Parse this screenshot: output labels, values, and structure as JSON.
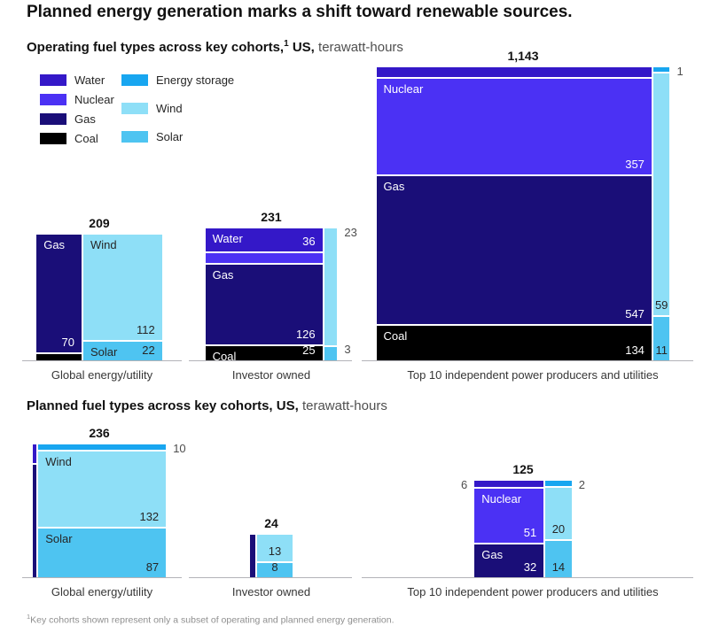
{
  "title": "Planned energy generation marks a shift toward renewable sources.",
  "headings": {
    "operating": {
      "bold": "Operating fuel types across key cohorts,",
      "sup": "1",
      "bold_cont": " US,",
      "unit": " terawatt-hours"
    },
    "planned": {
      "bold": "Planned fuel types across key cohorts, US,",
      "unit": " terawatt-hours"
    }
  },
  "legend": {
    "items": [
      {
        "label": "Water",
        "color": "#3418c8"
      },
      {
        "label": "Nuclear",
        "color": "#4b31f4"
      },
      {
        "label": "Gas",
        "color": "#1a0e78"
      },
      {
        "label": "Coal",
        "color": "#000000"
      },
      {
        "label": "Energy storage",
        "color": "#18a6f0"
      },
      {
        "label": "Wind",
        "color": "#8edff7"
      },
      {
        "label": "Solar",
        "color": "#4ec4f1"
      }
    ]
  },
  "footnote": {
    "sup": "1",
    "text": "Key cohorts shown represent only a subset of operating and planned energy generation."
  },
  "chart_data": [
    {
      "type": "bar",
      "subtype": "marimekko-mosaic",
      "title": "Operating fuel types across key cohorts, US",
      "unit": "terawatt-hours",
      "categories": [
        "Global energy/utility",
        "Investor owned",
        "Top 10 independent power producers and utilities"
      ],
      "bars": [
        {
          "category": "Global energy/utility",
          "total": 209,
          "total_label": "209",
          "columns": [
            {
              "segments": [
                {
                  "fuel": "Gas",
                  "value": 70,
                  "show_name": true,
                  "value_label": "70",
                  "value_pos": "br"
                },
                {
                  "fuel": "Coal",
                  "value": 5,
                  "estimated": true
                }
              ]
            },
            {
              "segments": [
                {
                  "fuel": "Wind",
                  "value": 112,
                  "show_name": true,
                  "value_label": "112",
                  "value_pos": "br"
                },
                {
                  "fuel": "Solar",
                  "value": 22,
                  "show_name": true,
                  "value_label": "22",
                  "value_pos": "br"
                }
              ]
            }
          ]
        },
        {
          "category": "Investor owned",
          "total": 231,
          "total_label": "231",
          "columns": [
            {
              "segments": [
                {
                  "fuel": "Water",
                  "value": 36,
                  "show_name": true,
                  "value_label": "36",
                  "value_pos": "br"
                },
                {
                  "fuel": "Nuclear",
                  "value": 18,
                  "estimated": true
                },
                {
                  "fuel": "Gas",
                  "value": 126,
                  "show_name": true,
                  "value_label": "126",
                  "value_pos": "br"
                },
                {
                  "fuel": "Coal",
                  "value": 25,
                  "show_name": true,
                  "value_label": "25",
                  "value_pos": "br"
                }
              ]
            },
            {
              "segments": [
                {
                  "fuel": "Wind",
                  "value": 23,
                  "value_label": "23",
                  "value_pos": "out-right"
                },
                {
                  "fuel": "Solar",
                  "value": 3,
                  "value_label": "3",
                  "value_pos": "out-right"
                }
              ]
            }
          ]
        },
        {
          "category": "Top 10 independent power producers and utilities",
          "total": 1143,
          "total_label": "1,143",
          "columns": [
            {
              "segments": [
                {
                  "fuel": "Water",
                  "value": 34,
                  "estimated": true
                },
                {
                  "fuel": "Nuclear",
                  "value": 357,
                  "show_name": true,
                  "value_label": "357",
                  "value_pos": "br"
                },
                {
                  "fuel": "Gas",
                  "value": 547,
                  "show_name": true,
                  "value_label": "547",
                  "value_pos": "br"
                },
                {
                  "fuel": "Coal",
                  "value": 134,
                  "show_name": true,
                  "value_label": "134",
                  "value_pos": "br"
                }
              ]
            },
            {
              "segments": [
                {
                  "fuel": "Energy storage",
                  "value": 1,
                  "value_label": "1",
                  "value_pos": "out-right"
                },
                {
                  "fuel": "Wind",
                  "value": 59,
                  "value_label": "59",
                  "value_pos": "bc"
                },
                {
                  "fuel": "Solar",
                  "value": 11,
                  "value_label": "11",
                  "value_pos": "bc"
                }
              ]
            }
          ]
        }
      ]
    },
    {
      "type": "bar",
      "subtype": "marimekko-mosaic",
      "title": "Planned fuel types across key cohorts, US",
      "unit": "terawatt-hours",
      "categories": [
        "Global energy/utility",
        "Investor owned",
        "Top 10 independent power producers and utilities"
      ],
      "bars": [
        {
          "category": "Global energy/utility",
          "total": 236,
          "total_label": "236",
          "columns": [
            {
              "segments": [
                {
                  "fuel": "Water",
                  "value": 1,
                  "estimated": true
                },
                {
                  "fuel": "Gas",
                  "value": 6,
                  "estimated": true
                }
              ]
            },
            {
              "segments": [
                {
                  "fuel": "Energy storage",
                  "value": 10,
                  "value_label": "10",
                  "value_pos": "out-right"
                },
                {
                  "fuel": "Wind",
                  "value": 132,
                  "show_name": true,
                  "value_label": "132",
                  "value_pos": "br"
                },
                {
                  "fuel": "Solar",
                  "value": 87,
                  "show_name": true,
                  "value_label": "87",
                  "value_pos": "br"
                }
              ]
            }
          ]
        },
        {
          "category": "Investor owned",
          "total": 24,
          "total_label": "24",
          "columns": [
            {
              "segments": [
                {
                  "fuel": "Gas",
                  "value": 3,
                  "estimated": true
                }
              ]
            },
            {
              "segments": [
                {
                  "fuel": "Wind",
                  "value": 13,
                  "value_label": "13",
                  "value_pos": "bc"
                },
                {
                  "fuel": "Solar",
                  "value": 8,
                  "value_label": "8",
                  "value_pos": "bc"
                }
              ]
            }
          ]
        },
        {
          "category": "Top 10 independent power producers and utilities",
          "total": 125,
          "total_label": "125",
          "columns": [
            {
              "segments": [
                {
                  "fuel": "Water",
                  "value": 6,
                  "value_label": "6",
                  "value_pos": "out-left"
                },
                {
                  "fuel": "Nuclear",
                  "value": 51,
                  "show_name": true,
                  "value_label": "51",
                  "value_pos": "br"
                },
                {
                  "fuel": "Gas",
                  "value": 32,
                  "show_name": true,
                  "value_label": "32",
                  "value_pos": "br"
                }
              ]
            },
            {
              "segments": [
                {
                  "fuel": "Energy storage",
                  "value": 2,
                  "value_label": "2",
                  "value_pos": "out-right"
                },
                {
                  "fuel": "Wind",
                  "value": 20,
                  "value_label": "20",
                  "value_pos": "bc"
                },
                {
                  "fuel": "Solar",
                  "value": 14,
                  "value_label": "14",
                  "value_pos": "bc"
                }
              ]
            }
          ]
        }
      ]
    }
  ]
}
